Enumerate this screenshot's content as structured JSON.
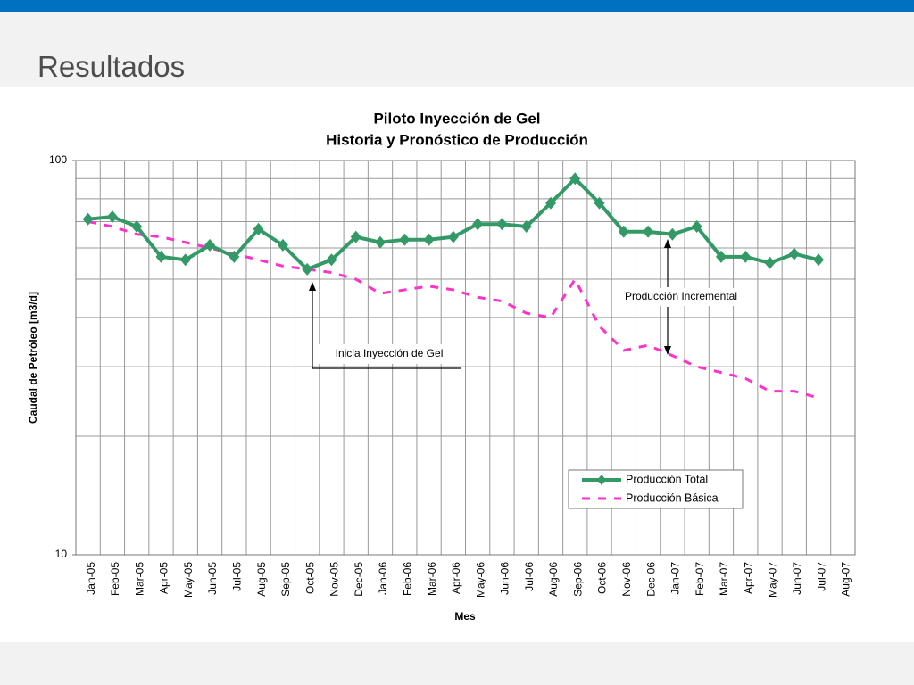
{
  "slide_title": "Resultados",
  "chart_data": {
    "type": "line",
    "title": [
      "Piloto Inyección de Gel",
      "Historia y Pronóstico de Producción"
    ],
    "y_label": "Caudal de Petróleo [m3/d]",
    "x_label": "Mes",
    "categories": [
      "Jan-05",
      "Feb-05",
      "Mar-05",
      "Apr-05",
      "May-05",
      "Jun-05",
      "Jul-05",
      "Aug-05",
      "Sep-05",
      "Oct-05",
      "Nov-05",
      "Dec-05",
      "Jan-06",
      "Feb-06",
      "Mar-06",
      "Apr-06",
      "May-06",
      "Jun-06",
      "Jul-06",
      "Aug-06",
      "Sep-06",
      "Oct-06",
      "Nov-06",
      "Dec-06",
      "Jan-07",
      "Feb-07",
      "Mar-07",
      "Apr-07",
      "May-07",
      "Jun-07",
      "Jul-07",
      "Aug-07"
    ],
    "series": [
      {
        "name": "Producción Total",
        "color": "#339966",
        "style": "solid",
        "values": [
          71,
          72,
          68,
          57,
          56,
          61,
          57,
          67,
          61,
          53,
          56,
          64,
          62,
          63,
          63,
          64,
          69,
          69,
          68,
          78,
          90,
          78,
          66,
          66,
          65,
          68,
          57,
          57,
          55,
          58,
          56,
          null
        ]
      },
      {
        "name": "Producción Básica",
        "color": "#ff33cc",
        "style": "dashed",
        "values": [
          70,
          68,
          65,
          64,
          62,
          60,
          58,
          56,
          54,
          53,
          52,
          50,
          46,
          47,
          48,
          47,
          45,
          44,
          41,
          40,
          50,
          38,
          33,
          34,
          32,
          30,
          29,
          28,
          26,
          26,
          25,
          null
        ]
      }
    ],
    "ylim": [
      10,
      100
    ],
    "yticks": [
      10,
      100
    ],
    "minor_yticks": [
      20,
      30,
      40,
      50,
      60,
      70,
      80,
      90
    ],
    "log_scale": true,
    "grid": true,
    "legend": "lower right",
    "annotations": [
      "Inicia Inyección de Gel",
      "Producción Incremental"
    ]
  }
}
